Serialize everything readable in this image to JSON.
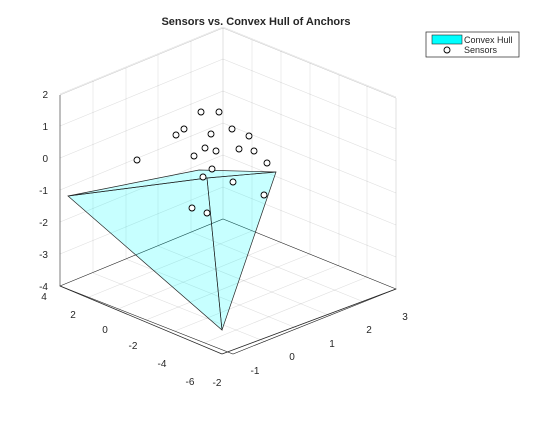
{
  "chart_data": {
    "type": "3d-scatter-surface",
    "title": "Sensors vs. Convex Hull of Anchors",
    "xlabel": "",
    "ylabel": "",
    "zlabel": "",
    "legend": {
      "placement": "top-right",
      "entries": [
        {
          "label": "Convex Hull",
          "color": "#00ffff"
        },
        {
          "label": "Sensors"
        }
      ]
    },
    "axes": {
      "x_ticks": [
        "-2",
        "-1",
        "0",
        "1",
        "2",
        "3"
      ],
      "y_ticks": [
        "-6",
        "-4",
        "-2",
        "0",
        "2",
        "4"
      ],
      "z_ticks": [
        "-4",
        "-3",
        "-2",
        "-1",
        "0",
        "1",
        "2"
      ],
      "grid": true
    },
    "hull_color": "#00ffff",
    "hull_alpha": 0.22
  }
}
